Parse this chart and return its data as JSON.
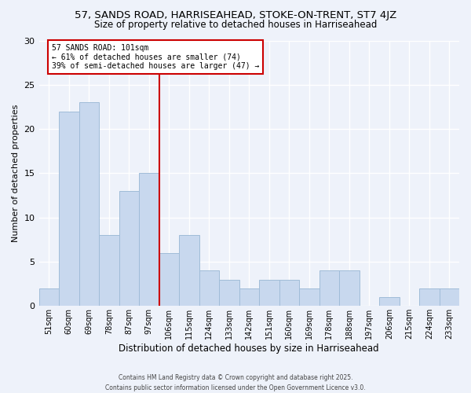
{
  "title": "57, SANDS ROAD, HARRISEAHEAD, STOKE-ON-TRENT, ST7 4JZ",
  "subtitle": "Size of property relative to detached houses in Harriseahead",
  "xlabel": "Distribution of detached houses by size in Harriseahead",
  "ylabel": "Number of detached properties",
  "categories": [
    "51sqm",
    "60sqm",
    "69sqm",
    "78sqm",
    "87sqm",
    "97sqm",
    "106sqm",
    "115sqm",
    "124sqm",
    "133sqm",
    "142sqm",
    "151sqm",
    "160sqm",
    "169sqm",
    "178sqm",
    "188sqm",
    "197sqm",
    "206sqm",
    "215sqm",
    "224sqm",
    "233sqm"
  ],
  "values": [
    2,
    22,
    23,
    8,
    13,
    15,
    6,
    8,
    4,
    3,
    2,
    3,
    3,
    2,
    4,
    4,
    0,
    1,
    0,
    2,
    2
  ],
  "bar_color": "#c8d8ee",
  "bar_edge_color": "#a0bcd8",
  "ylim": [
    0,
    30
  ],
  "yticks": [
    0,
    5,
    10,
    15,
    20,
    25,
    30
  ],
  "vline_x": 5.5,
  "vline_color": "#cc0000",
  "annotation_text_line1": "57 SANDS ROAD: 101sqm",
  "annotation_text_line2": "← 61% of detached houses are smaller (74)",
  "annotation_text_line3": "39% of semi-detached houses are larger (47) →",
  "annotation_box_color": "#cc0000",
  "background_color": "#eef2fa",
  "grid_color": "#ffffff",
  "footer_line1": "Contains HM Land Registry data © Crown copyright and database right 2025.",
  "footer_line2": "Contains public sector information licensed under the Open Government Licence v3.0."
}
